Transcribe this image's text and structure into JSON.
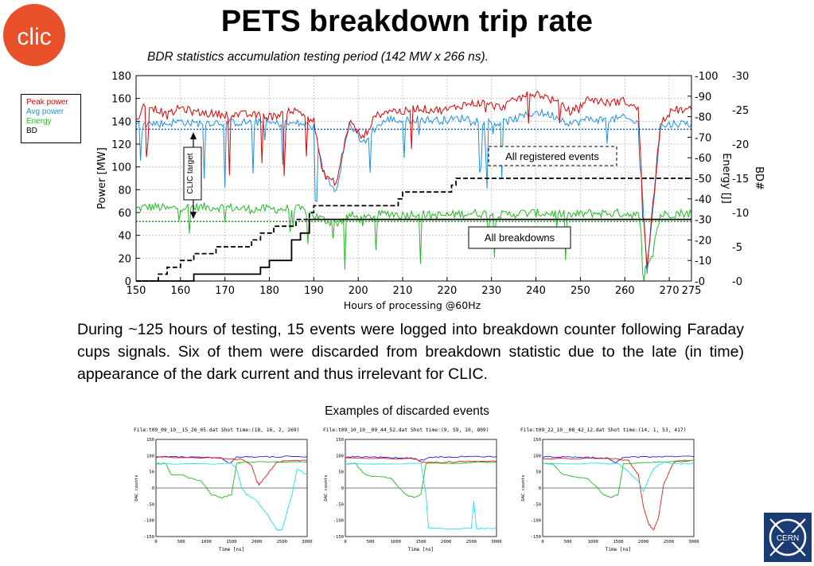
{
  "title": "PETS breakdown trip rate",
  "subtitle": "BDR statistics accumulation testing period (142 MW x 266 ns).",
  "logos": {
    "left": "clic-logo",
    "right": "cern-logo",
    "left_text": "CLIC",
    "right_text": "CERN"
  },
  "legend": {
    "items": [
      {
        "label": "Peak power",
        "color": "#e00000"
      },
      {
        "label": "Avg power",
        "color": "#1e8fe6"
      },
      {
        "label": "Energy",
        "color": "#22bb22"
      },
      {
        "label": "BD",
        "color": "#000000"
      }
    ]
  },
  "annotations": {
    "clic_target": "CLIC target",
    "all_registered": "All registered events",
    "all_breakdowns": "All breakdowns"
  },
  "paragraph": "During ~125 hours of testing, 15 events were logged into breakdown counter following Faraday cups signals. Six of them were discarded from breakdown statistic due to the late (in time) appearance of the dark current  and thus irrelevant for CLIC.",
  "examples_caption": "Examples of discarded events",
  "chart_data": [
    {
      "type": "line",
      "xlabel": "Hours of processing @60Hz",
      "ylabel": "Power [MW]",
      "y2label": "Energy [J]",
      "y3label": "BD#",
      "x_ticks": [
        150,
        160,
        170,
        180,
        190,
        200,
        210,
        220,
        230,
        240,
        250,
        260,
        270,
        275
      ],
      "y_ticks": [
        0,
        20,
        40,
        60,
        80,
        100,
        120,
        140,
        160,
        180
      ],
      "y2_ticks": [
        0,
        10,
        20,
        30,
        40,
        50,
        60,
        70,
        80,
        90,
        100
      ],
      "y3_ticks": [
        0,
        5,
        10,
        15,
        20,
        25,
        30
      ],
      "xlim": [
        150,
        275
      ],
      "ylim": [
        0,
        180
      ],
      "y2lim": [
        0,
        100
      ],
      "y3lim": [
        0,
        30
      ],
      "target_lines": {
        "power": 133,
        "energy": 29
      },
      "series": [
        {
          "name": "Peak power",
          "color": "#e00000",
          "x": [
            150,
            152,
            155,
            157,
            160,
            163,
            166,
            170,
            175,
            178,
            181,
            184,
            187,
            190,
            192,
            195,
            198,
            201,
            204,
            207,
            210,
            213,
            216,
            220,
            224,
            228,
            232,
            236,
            240,
            244,
            248,
            252,
            256,
            260,
            263,
            265,
            268,
            271,
            275
          ],
          "y": [
            140,
            155,
            150,
            145,
            152,
            148,
            147,
            146,
            146,
            145,
            144,
            150,
            148,
            140,
            95,
            85,
            140,
            125,
            145,
            150,
            148,
            152,
            150,
            150,
            155,
            156,
            152,
            160,
            165,
            158,
            148,
            160,
            156,
            158,
            150,
            10,
            140,
            150,
            150
          ]
        },
        {
          "name": "Avg power",
          "color": "#1e8fe6",
          "x": [
            150,
            152,
            155,
            157,
            160,
            163,
            166,
            170,
            175,
            178,
            181,
            184,
            187,
            190,
            192,
            195,
            198,
            201,
            204,
            207,
            210,
            213,
            216,
            220,
            224,
            228,
            232,
            236,
            240,
            244,
            248,
            252,
            256,
            260,
            263,
            265,
            268,
            271,
            275
          ],
          "y": [
            137,
            138,
            138,
            138,
            140,
            138,
            139,
            139,
            139,
            139,
            138,
            138,
            138,
            135,
            95,
            80,
            138,
            120,
            135,
            142,
            140,
            142,
            141,
            141,
            143,
            140,
            138,
            143,
            148,
            145,
            138,
            142,
            141,
            143,
            138,
            8,
            135,
            138,
            138
          ]
        },
        {
          "name": "Energy",
          "color": "#22bb22",
          "x": [
            150,
            152,
            155,
            157,
            160,
            163,
            166,
            170,
            175,
            178,
            181,
            184,
            187,
            190,
            192,
            195,
            198,
            201,
            204,
            207,
            210,
            213,
            216,
            220,
            224,
            228,
            232,
            236,
            240,
            244,
            248,
            252,
            256,
            260,
            263,
            265,
            268,
            271,
            275
          ],
          "y": [
            35,
            36,
            36,
            35,
            36,
            36,
            36,
            36,
            35,
            35,
            35,
            35,
            35,
            32,
            30,
            28,
            32,
            30,
            32,
            33,
            32,
            33,
            32,
            32,
            33,
            33,
            32,
            33,
            33,
            33,
            32,
            33,
            33,
            33,
            32,
            4,
            32,
            33,
            33
          ]
        },
        {
          "name": "All registered events",
          "axis": "BD",
          "style": "dashed",
          "x": [
            150,
            155,
            157,
            160,
            163,
            168,
            176,
            178,
            181,
            186,
            189,
            190,
            209,
            210,
            221,
            222,
            275
          ],
          "y": [
            0,
            1,
            2,
            3,
            4,
            5,
            6,
            7,
            8,
            9,
            10,
            11,
            12,
            13,
            14,
            15,
            15
          ]
        },
        {
          "name": "All breakdowns",
          "axis": "BD",
          "style": "solid",
          "x": [
            150,
            155,
            163,
            178,
            180,
            185,
            187,
            189,
            275
          ],
          "y": [
            0,
            0,
            1,
            2,
            3,
            6,
            7,
            9,
            9
          ]
        }
      ]
    },
    {
      "type": "line",
      "title": "File:t09_09_10__15_26_05.dat Shot time:(18, 16, 2, 269)",
      "xlabel": "Time [ns]",
      "ylabel": "DAC counts",
      "xlim": [
        0,
        3000
      ],
      "ylim": [
        -150,
        150
      ],
      "x_ticks": [
        0,
        500,
        1000,
        1500,
        2000,
        2500,
        3000
      ],
      "y_ticks": [
        -150,
        -100,
        -50,
        0,
        50,
        100,
        150
      ],
      "series": [
        {
          "name": "blue",
          "color": "#2020cc",
          "x": [
            0,
            200,
            600,
            1000,
            1300,
            1450,
            1600,
            2000,
            2500,
            3000
          ],
          "y": [
            95,
            97,
            95,
            94,
            92,
            75,
            95,
            96,
            97,
            97
          ]
        },
        {
          "name": "red",
          "color": "#dd2020",
          "x": [
            0,
            1400,
            1500,
            1700,
            1900,
            2000,
            2050,
            2200,
            2400,
            2600,
            3000
          ],
          "y": [
            95,
            92,
            90,
            88,
            70,
            20,
            10,
            40,
            80,
            85,
            85
          ]
        },
        {
          "name": "green",
          "color": "#20bb20",
          "x": [
            0,
            200,
            300,
            500,
            900,
            1100,
            1300,
            1500,
            1600,
            1700,
            2000,
            3000
          ],
          "y": [
            75,
            75,
            40,
            40,
            20,
            -20,
            -30,
            -20,
            75,
            80,
            80,
            80
          ]
        },
        {
          "name": "cyan",
          "color": "#20e0ee",
          "x": [
            0,
            1500,
            1600,
            1700,
            1800,
            2000,
            2200,
            2400,
            2500,
            2700,
            2800,
            3000
          ],
          "y": [
            75,
            75,
            60,
            0,
            -20,
            -40,
            -80,
            -130,
            -130,
            -20,
            60,
            40
          ]
        }
      ]
    },
    {
      "type": "line",
      "title": "File:t09_10_10__09_44_52.dat Shot time:(9, 59, 10, 809)",
      "xlabel": "Time [ns]",
      "ylabel": "DAC counts",
      "xlim": [
        0,
        3000
      ],
      "ylim": [
        -150,
        150
      ],
      "x_ticks": [
        0,
        500,
        1000,
        1500,
        2000,
        2500,
        3000
      ],
      "y_ticks": [
        -150,
        -100,
        -50,
        0,
        50,
        100,
        150
      ],
      "series": [
        {
          "name": "blue",
          "color": "#2020cc",
          "x": [
            0,
            200,
            600,
            1000,
            1300,
            1500,
            1700,
            2000,
            2500,
            3000
          ],
          "y": [
            95,
            97,
            95,
            94,
            92,
            85,
            95,
            96,
            97,
            97
          ]
        },
        {
          "name": "red",
          "color": "#dd2020",
          "x": [
            0,
            1400,
            1500,
            1700,
            2000,
            2500,
            3000
          ],
          "y": [
            92,
            90,
            80,
            78,
            80,
            82,
            82
          ]
        },
        {
          "name": "green",
          "color": "#20bb20",
          "x": [
            0,
            200,
            400,
            900,
            1200,
            1350,
            1500,
            1600,
            3000
          ],
          "y": [
            75,
            75,
            40,
            30,
            -20,
            -30,
            -20,
            75,
            80
          ]
        },
        {
          "name": "cyan",
          "color": "#20e0ee",
          "x": [
            0,
            1500,
            1600,
            1650,
            2500,
            2550,
            2600,
            2700,
            3000
          ],
          "y": [
            75,
            75,
            -20,
            -125,
            -125,
            -40,
            -125,
            -125,
            -125
          ]
        }
      ]
    },
    {
      "type": "line",
      "title": "File:t09_22_10__08_42_12.dat Shot time:(14, 1, 53, 417)",
      "xlabel": "Time [ns]",
      "ylabel": "DAC counts",
      "xlim": [
        0,
        3000
      ],
      "ylim": [
        -150,
        150
      ],
      "x_ticks": [
        0,
        500,
        1000,
        1500,
        2000,
        2500,
        3000
      ],
      "y_ticks": [
        -150,
        -100,
        -50,
        0,
        50,
        100,
        150
      ],
      "series": [
        {
          "name": "blue",
          "color": "#2020cc",
          "x": [
            0,
            200,
            600,
            1000,
            1300,
            1450,
            1600,
            2000,
            2500,
            3000
          ],
          "y": [
            95,
            97,
            95,
            94,
            92,
            78,
            95,
            96,
            97,
            97
          ]
        },
        {
          "name": "red",
          "color": "#dd2020",
          "x": [
            0,
            1400,
            1700,
            1900,
            2000,
            2100,
            2200,
            2300,
            2400,
            2600,
            3000
          ],
          "y": [
            92,
            90,
            85,
            40,
            -60,
            -110,
            -130,
            -90,
            10,
            80,
            85
          ]
        },
        {
          "name": "green",
          "color": "#20bb20",
          "x": [
            0,
            200,
            400,
            900,
            1200,
            1350,
            1500,
            1600,
            3000
          ],
          "y": [
            75,
            75,
            40,
            30,
            -20,
            -30,
            -20,
            75,
            85
          ]
        },
        {
          "name": "cyan",
          "color": "#20e0ee",
          "x": [
            0,
            1500,
            1700,
            1900,
            2000,
            2200,
            2400,
            2600,
            3000
          ],
          "y": [
            75,
            75,
            50,
            20,
            -10,
            60,
            80,
            75,
            75
          ]
        }
      ]
    }
  ]
}
